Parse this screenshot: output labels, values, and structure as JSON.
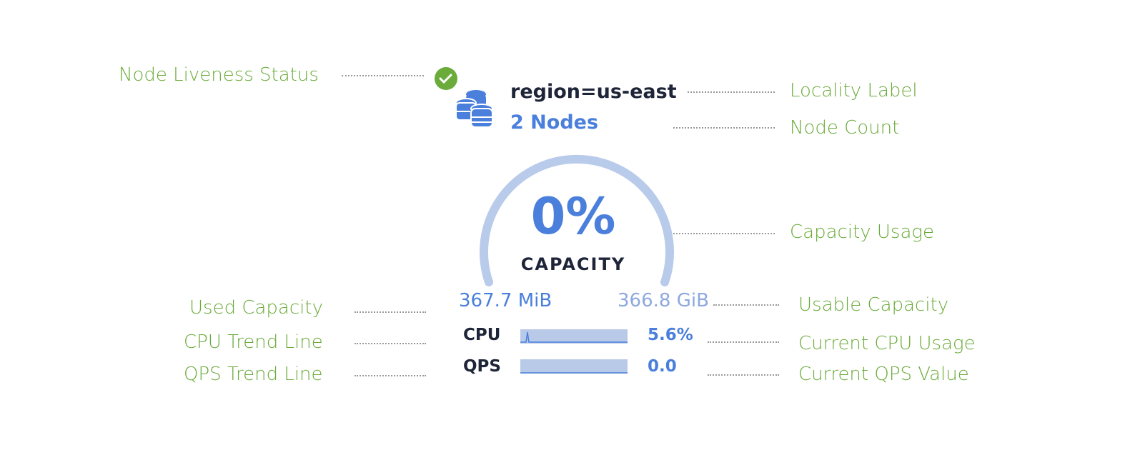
{
  "annotations": {
    "liveness": "Node Liveness Status",
    "locality": "Locality Label",
    "node_count": "Node Count",
    "capacity_usage": "Capacity Usage",
    "used_capacity": "Used Capacity",
    "usable_capacity": "Usable Capacity",
    "cpu_trend": "CPU Trend Line",
    "current_cpu": "Current CPU Usage",
    "qps_trend": "QPS Trend Line",
    "current_qps": "Current QPS Value"
  },
  "widget": {
    "status": "live",
    "locality": "region=us-east",
    "nodes": "2 Nodes",
    "capacity_percent": "0%",
    "capacity_label": "CAPACITY",
    "capacity_fraction": 0,
    "used": "367.7 MiB",
    "usable": "366.8 GiB",
    "cpu_label": "CPU",
    "cpu_value": "5.6%",
    "qps_label": "QPS",
    "qps_value": "0.0"
  },
  "colors": {
    "annotation": "#6aab3a",
    "accent": "#4a7fdc",
    "gauge": "#b9cbeb",
    "status": "#6aab3a"
  },
  "icons": {
    "status": "check-circle-icon",
    "cluster": "database-stack-icon"
  }
}
